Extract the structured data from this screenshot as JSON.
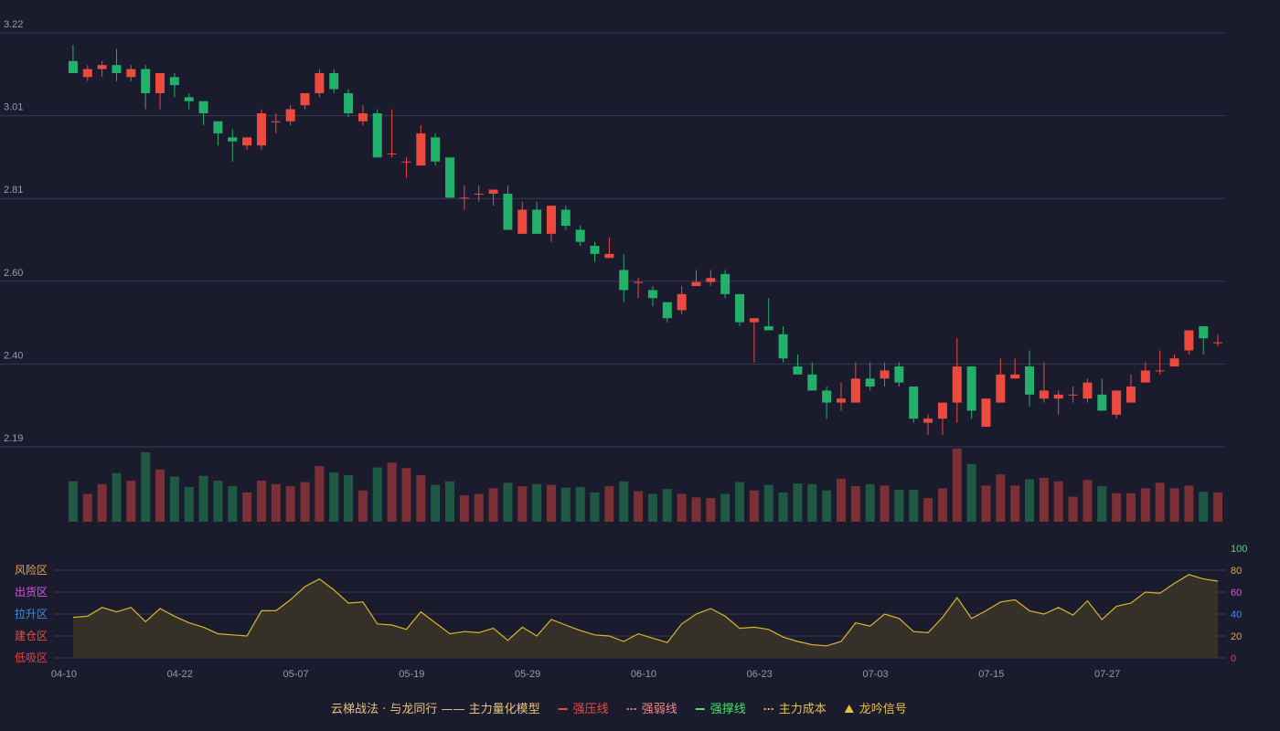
{
  "colors": {
    "background": "#1b1b2e",
    "grid": "#3a3a52",
    "axis_text": "#9a9aaa",
    "up": "#ec4a3e",
    "down": "#22b06a",
    "up_volume": "#7a3036",
    "down_volume": "#1f5944",
    "indicator_line": "#d9b52e",
    "indicator_fill": "#3b3527",
    "tick_100": "#3ee46c",
    "tick_80": "#e8a33d",
    "tick_60": "#e34de6",
    "tick_40": "#3d8ee8",
    "tick_20": "#e8a33d",
    "tick_0": "#ec3f3f"
  },
  "chart_data": {
    "type": "candlestick",
    "price_axis": {
      "ticks": [
        "3.22",
        "3.01",
        "2.81",
        "2.60",
        "2.40",
        "2.19"
      ],
      "ylim": [
        2.19,
        3.22
      ]
    },
    "x_tick_labels": [
      "04-10",
      "04-22",
      "05-07",
      "05-19",
      "05-29",
      "06-10",
      "06-23",
      "07-03",
      "07-15",
      "07-27"
    ],
    "x_tick_index": [
      0,
      8,
      16,
      24,
      32,
      40,
      48,
      56,
      64,
      72
    ],
    "candles": [
      [
        3.15,
        3.12,
        3.19,
        3.12
      ],
      [
        3.11,
        3.13,
        3.14,
        3.1
      ],
      [
        3.13,
        3.14,
        3.15,
        3.11
      ],
      [
        3.14,
        3.12,
        3.18,
        3.1
      ],
      [
        3.11,
        3.13,
        3.14,
        3.1
      ],
      [
        3.13,
        3.07,
        3.14,
        3.03
      ],
      [
        3.07,
        3.12,
        3.12,
        3.03
      ],
      [
        3.11,
        3.09,
        3.12,
        3.06
      ],
      [
        3.06,
        3.05,
        3.07,
        3.03
      ],
      [
        3.05,
        3.02,
        3.05,
        2.99
      ],
      [
        3.0,
        2.97,
        3.0,
        2.94
      ],
      [
        2.96,
        2.95,
        2.98,
        2.9
      ],
      [
        2.94,
        2.96,
        2.96,
        2.93
      ],
      [
        2.94,
        3.02,
        3.03,
        2.93
      ],
      [
        3.0,
        3.0,
        3.02,
        2.97
      ],
      [
        3.0,
        3.03,
        3.04,
        2.99
      ],
      [
        3.04,
        3.07,
        3.07,
        3.03
      ],
      [
        3.07,
        3.12,
        3.13,
        3.06
      ],
      [
        3.12,
        3.08,
        3.13,
        3.07
      ],
      [
        3.07,
        3.02,
        3.08,
        3.01
      ],
      [
        3.0,
        3.02,
        3.04,
        2.99
      ],
      [
        3.02,
        2.91,
        3.03,
        2.91
      ],
      [
        2.92,
        2.92,
        3.03,
        2.91
      ],
      [
        2.9,
        2.9,
        2.91,
        2.86
      ],
      [
        2.89,
        2.97,
        2.99,
        2.89
      ],
      [
        2.96,
        2.9,
        2.97,
        2.89
      ],
      [
        2.91,
        2.81,
        2.91,
        2.81
      ],
      [
        2.81,
        2.81,
        2.84,
        2.78
      ],
      [
        2.82,
        2.82,
        2.84,
        2.8
      ],
      [
        2.82,
        2.83,
        2.83,
        2.79
      ],
      [
        2.82,
        2.73,
        2.84,
        2.73
      ],
      [
        2.72,
        2.78,
        2.8,
        2.72
      ],
      [
        2.78,
        2.72,
        2.8,
        2.72
      ],
      [
        2.72,
        2.79,
        2.79,
        2.7
      ],
      [
        2.78,
        2.74,
        2.79,
        2.73
      ],
      [
        2.73,
        2.7,
        2.74,
        2.69
      ],
      [
        2.69,
        2.67,
        2.7,
        2.65
      ],
      [
        2.66,
        2.67,
        2.71,
        2.66
      ],
      [
        2.63,
        2.58,
        2.67,
        2.55
      ],
      [
        2.6,
        2.6,
        2.61,
        2.56
      ],
      [
        2.58,
        2.56,
        2.59,
        2.54
      ],
      [
        2.55,
        2.51,
        2.55,
        2.5
      ],
      [
        2.53,
        2.57,
        2.59,
        2.52
      ],
      [
        2.59,
        2.6,
        2.63,
        2.59
      ],
      [
        2.6,
        2.61,
        2.63,
        2.59
      ],
      [
        2.62,
        2.57,
        2.63,
        2.56
      ],
      [
        2.57,
        2.5,
        2.57,
        2.49
      ],
      [
        2.5,
        2.51,
        2.51,
        2.4
      ],
      [
        2.49,
        2.48,
        2.56,
        2.48
      ],
      [
        2.47,
        2.41,
        2.49,
        2.4
      ],
      [
        2.39,
        2.37,
        2.42,
        2.37
      ],
      [
        2.37,
        2.33,
        2.4,
        2.33
      ],
      [
        2.33,
        2.3,
        2.34,
        2.26
      ],
      [
        2.3,
        2.31,
        2.35,
        2.28
      ],
      [
        2.3,
        2.36,
        2.4,
        2.3
      ],
      [
        2.36,
        2.34,
        2.4,
        2.33
      ],
      [
        2.36,
        2.38,
        2.4,
        2.34
      ],
      [
        2.39,
        2.35,
        2.4,
        2.34
      ],
      [
        2.34,
        2.26,
        2.34,
        2.25
      ],
      [
        2.25,
        2.26,
        2.27,
        2.22
      ],
      [
        2.26,
        2.3,
        2.3,
        2.22
      ],
      [
        2.3,
        2.39,
        2.46,
        2.25
      ],
      [
        2.39,
        2.28,
        2.39,
        2.26
      ],
      [
        2.24,
        2.31,
        2.31,
        2.24
      ],
      [
        2.3,
        2.37,
        2.41,
        2.3
      ],
      [
        2.36,
        2.37,
        2.41,
        2.36
      ],
      [
        2.39,
        2.32,
        2.43,
        2.29
      ],
      [
        2.31,
        2.33,
        2.4,
        2.3
      ],
      [
        2.31,
        2.32,
        2.33,
        2.27
      ],
      [
        2.32,
        2.32,
        2.34,
        2.3
      ],
      [
        2.31,
        2.35,
        2.36,
        2.3
      ],
      [
        2.32,
        2.28,
        2.36,
        2.28
      ],
      [
        2.27,
        2.33,
        2.33,
        2.26
      ],
      [
        2.3,
        2.34,
        2.37,
        2.3
      ],
      [
        2.35,
        2.38,
        2.4,
        2.35
      ],
      [
        2.38,
        2.38,
        2.43,
        2.37
      ],
      [
        2.39,
        2.41,
        2.42,
        2.39
      ],
      [
        2.43,
        2.48,
        2.48,
        2.42
      ],
      [
        2.49,
        2.46,
        2.49,
        2.42
      ],
      [
        2.45,
        2.45,
        2.47,
        2.44
      ]
    ],
    "volume": [
      58,
      40,
      54,
      70,
      59,
      100,
      75,
      65,
      50,
      66,
      59,
      51,
      42,
      59,
      54,
      51,
      57,
      80,
      71,
      67,
      45,
      78,
      85,
      77,
      67,
      53,
      58,
      38,
      40,
      48,
      56,
      51,
      54,
      53,
      49,
      50,
      42,
      51,
      58,
      44,
      40,
      47,
      40,
      35,
      34,
      40,
      57,
      45,
      53,
      42,
      55,
      54,
      45,
      62,
      51,
      54,
      52,
      46,
      46,
      34,
      48,
      105,
      83,
      52,
      68,
      52,
      61,
      63,
      58,
      36,
      60,
      51,
      41,
      41,
      48,
      56,
      48,
      52,
      43,
      42
    ],
    "indicator": {
      "axis_ticks": [
        "100",
        "80",
        "60",
        "40",
        "20",
        "0"
      ],
      "ylim": [
        0,
        100
      ],
      "zones": [
        "风险区",
        "出货区",
        "拉升区",
        "建仓区",
        "低吸区"
      ],
      "values": [
        37,
        38,
        46,
        42,
        46,
        33,
        45,
        38,
        32,
        28,
        22,
        21,
        20,
        43,
        43,
        53,
        65,
        72,
        62,
        50,
        51,
        31,
        30,
        26,
        42,
        32,
        22,
        24,
        23,
        27,
        16,
        28,
        20,
        35,
        30,
        25,
        21,
        20,
        15,
        22,
        18,
        14,
        31,
        40,
        45,
        38,
        27,
        28,
        26,
        19,
        15,
        12,
        11,
        15,
        32,
        29,
        40,
        36,
        24,
        23,
        37,
        55,
        36,
        43,
        51,
        53,
        43,
        40,
        46,
        39,
        52,
        35,
        47,
        50,
        60,
        59,
        68,
        76,
        72,
        70
      ]
    },
    "legend": [
      {
        "marker": "",
        "label": "云梯战法 · 与龙同行 —— 主力量化模型",
        "color": "#e8c37a"
      },
      {
        "marker": "solid-red",
        "label": "强压线",
        "color": "#ec4a3e"
      },
      {
        "marker": "dashed-pink",
        "label": "强弱线",
        "color": "#f08a8a"
      },
      {
        "marker": "solid-green",
        "label": "强撑线",
        "color": "#3ee46c"
      },
      {
        "marker": "dashed-yellow",
        "label": "主力成本",
        "color": "#e8c33a"
      },
      {
        "marker": "triangle-yellow",
        "label": "龙吟信号",
        "color": "#e8c33a"
      }
    ]
  }
}
